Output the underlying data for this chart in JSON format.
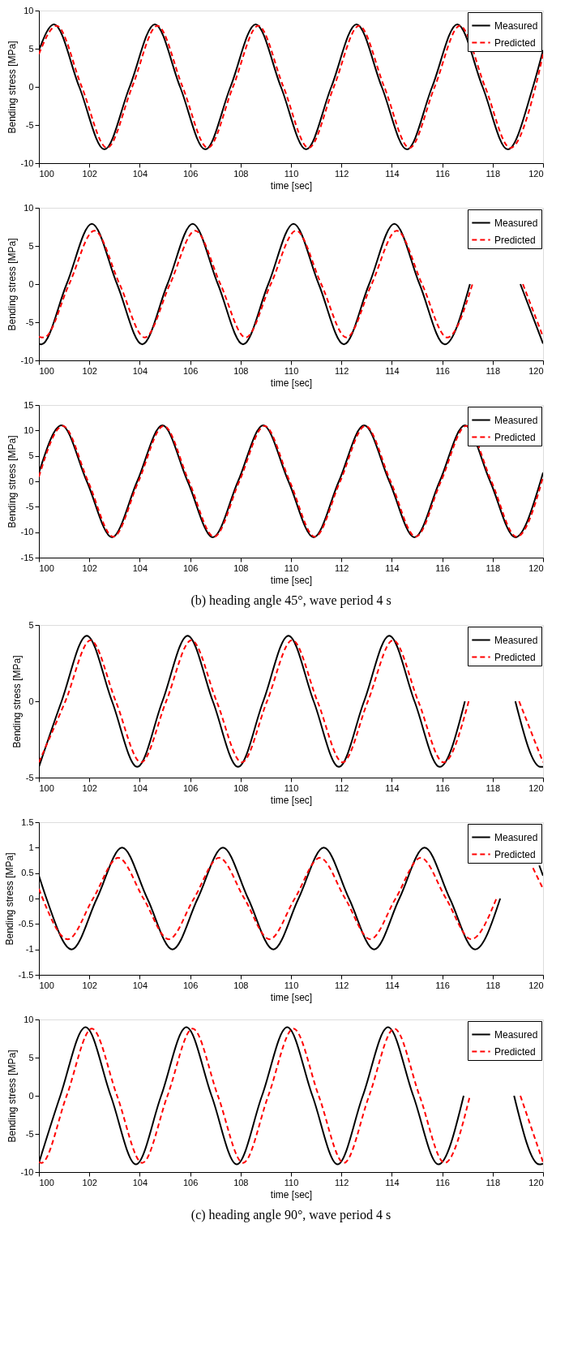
{
  "chart_data": [
    {
      "type": "line",
      "xlabel": "time [sec]",
      "ylabel": "Bending stress [MPa]",
      "xlim": [
        100,
        120
      ],
      "xticks": [
        100,
        102,
        104,
        106,
        108,
        110,
        112,
        114,
        116,
        118,
        120
      ],
      "ylim": [
        -10,
        10
      ],
      "yticks": [
        -10,
        -5,
        0,
        5,
        10
      ],
      "legend": "top right",
      "series": [
        {
          "name": "Measured",
          "color": "#000000",
          "line_style": "solid",
          "x": [
            100,
            100.6,
            101.6,
            102.6,
            103.6,
            104.6,
            105.6,
            106.6,
            107.6,
            108.6,
            109.6,
            110.6,
            111.6,
            112.6,
            113.6,
            114.6,
            115.6,
            116.6,
            117.6,
            118.6,
            119.6,
            120
          ],
          "values": [
            4.8,
            8.2,
            0,
            -8.2,
            0,
            8.2,
            0,
            -8.2,
            0,
            8.2,
            0,
            -8.2,
            0,
            8.2,
            0,
            -8.2,
            0,
            8.2,
            0,
            -8.2,
            0,
            4.8
          ]
        },
        {
          "name": "Predicted",
          "color": "#ff0000",
          "line_style": "dashed",
          "x": [
            100,
            100.7,
            101.7,
            102.7,
            103.7,
            104.7,
            105.7,
            106.7,
            107.7,
            108.7,
            109.7,
            110.7,
            111.7,
            112.7,
            113.7,
            114.7,
            115.7,
            116.7,
            117.7,
            118.7,
            119.7,
            120
          ],
          "values": [
            4.3,
            8.0,
            0,
            -8.0,
            0,
            8.0,
            0,
            -8.0,
            0,
            8.0,
            0,
            -8.0,
            0,
            8.0,
            0,
            -8.0,
            0,
            8.0,
            0,
            -8.0,
            0,
            4.3
          ]
        }
      ]
    },
    {
      "type": "line",
      "xlabel": "time [sec]",
      "ylabel": "Bending stress [MPa]",
      "xlim": [
        100,
        120
      ],
      "xticks": [
        100,
        102,
        104,
        106,
        108,
        110,
        112,
        114,
        116,
        118,
        120
      ],
      "ylim": [
        -10,
        10
      ],
      "yticks": [
        -10,
        -5,
        0,
        5,
        10
      ],
      "legend": "top right",
      "series": [
        {
          "name": "Measured",
          "color": "#000000",
          "line_style": "solid",
          "x": [
            100,
            100.1,
            101.1,
            102.1,
            103.1,
            104.1,
            105.1,
            106.1,
            107.1,
            108.1,
            109.1,
            110.1,
            111.1,
            112.1,
            113.1,
            114.1,
            115.1,
            116.1,
            117.1,
            118.1,
            119.1,
            120
          ],
          "values": [
            -7.8,
            -7.9,
            0,
            7.9,
            0,
            -7.9,
            0,
            7.9,
            0,
            -7.9,
            0,
            7.9,
            0,
            -7.9,
            0,
            7.9,
            0,
            -7.9,
            0,
            null,
            0,
            -7.8
          ]
        },
        {
          "name": "Predicted",
          "color": "#ff0000",
          "line_style": "dashed",
          "x": [
            100,
            100.2,
            101.2,
            102.2,
            103.2,
            104.2,
            105.2,
            106.2,
            107.2,
            108.2,
            109.2,
            110.2,
            111.2,
            112.2,
            113.2,
            114.2,
            115.2,
            116.2,
            117.2,
            118.2,
            119.2,
            120
          ],
          "values": [
            -6.9,
            -7.0,
            0,
            7.0,
            0,
            -7.0,
            0,
            7.0,
            0,
            -7.0,
            0,
            7.0,
            0,
            -7.0,
            0,
            7.0,
            0,
            -7.0,
            0,
            null,
            0,
            -6.9
          ]
        }
      ]
    },
    {
      "type": "line",
      "xlabel": "time [sec]",
      "ylabel": "Bending stress [MPa]",
      "xlim": [
        100,
        120
      ],
      "xticks": [
        100,
        102,
        104,
        106,
        108,
        110,
        112,
        114,
        116,
        118,
        120
      ],
      "ylim": [
        -15,
        15
      ],
      "yticks": [
        -15,
        -10,
        -5,
        0,
        5,
        10,
        15
      ],
      "legend": "top right",
      "annotations": [
        "(b) heading angle 45°, wave period 4 s"
      ],
      "series": [
        {
          "name": "Measured",
          "color": "#000000",
          "line_style": "solid",
          "x": [
            100,
            100.9,
            101.9,
            102.9,
            103.9,
            104.9,
            105.9,
            106.9,
            107.9,
            108.9,
            109.9,
            110.9,
            111.9,
            112.9,
            113.9,
            114.9,
            115.9,
            116.9,
            117.9,
            118.9,
            119.9,
            120
          ],
          "values": [
            1.7,
            11,
            0,
            -11,
            0,
            11,
            0,
            -11,
            0,
            11,
            0,
            -11,
            0,
            11,
            0,
            -11,
            0,
            11,
            0,
            -11,
            0,
            1.7
          ]
        },
        {
          "name": "Predicted",
          "color": "#ff0000",
          "line_style": "dashed",
          "x": [
            100,
            100.95,
            101.95,
            102.95,
            103.95,
            104.95,
            105.95,
            106.95,
            107.95,
            108.95,
            109.95,
            110.95,
            111.95,
            112.95,
            113.95,
            114.95,
            115.95,
            116.95,
            117.95,
            118.95,
            119.95,
            120
          ],
          "values": [
            0.9,
            10.9,
            0,
            -10.9,
            0,
            10.9,
            0,
            -10.9,
            0,
            10.9,
            0,
            -10.9,
            0,
            10.9,
            0,
            -10.9,
            0,
            10.9,
            0,
            -10.9,
            0,
            0.9
          ]
        }
      ]
    },
    {
      "type": "line",
      "xlabel": "time [sec]",
      "ylabel": "Bending stress [MPa]",
      "xlim": [
        100,
        120
      ],
      "xticks": [
        100,
        102,
        104,
        106,
        108,
        110,
        112,
        114,
        116,
        118,
        120
      ],
      "ylim": [
        -5,
        5
      ],
      "yticks": [
        -5,
        0,
        5
      ],
      "legend": "top right",
      "series": [
        {
          "name": "Measured",
          "color": "#000000",
          "line_style": "solid",
          "x": [
            100,
            100.9,
            101.9,
            102.9,
            103.9,
            104.9,
            105.9,
            106.9,
            107.9,
            108.9,
            109.9,
            110.9,
            111.9,
            112.9,
            113.9,
            114.9,
            115.9,
            116.9,
            117.9,
            118.9,
            119.9,
            120
          ],
          "values": [
            -4.3,
            0,
            4.3,
            0,
            -4.3,
            0,
            4.3,
            0,
            -4.3,
            0,
            4.3,
            0,
            -4.3,
            0,
            4.3,
            0,
            -4.3,
            0,
            null,
            0,
            -4.3,
            -4.3
          ]
        },
        {
          "name": "Predicted",
          "color": "#ff0000",
          "line_style": "dashed",
          "x": [
            100,
            101.05,
            102.05,
            103.05,
            104.05,
            105.05,
            106.05,
            107.05,
            108.05,
            109.05,
            110.05,
            111.05,
            112.05,
            113.05,
            114.05,
            115.05,
            116.05,
            117.05,
            118.05,
            119.05,
            120
          ],
          "values": [
            -4.0,
            0,
            4.0,
            0,
            -4.0,
            0,
            4.0,
            0,
            -4.0,
            0,
            4.0,
            0,
            -4.0,
            0,
            4.0,
            0,
            -4.0,
            0,
            null,
            0,
            -4.0
          ]
        }
      ]
    },
    {
      "type": "line",
      "xlabel": "time [sec]",
      "ylabel": "Bending stress [MPa]",
      "xlim": [
        100,
        120
      ],
      "xticks": [
        100,
        102,
        104,
        106,
        108,
        110,
        112,
        114,
        116,
        118,
        120
      ],
      "ylim": [
        -1.5,
        1.5
      ],
      "yticks": [
        -1.5,
        -1,
        -0.5,
        0,
        0.5,
        1,
        1.5
      ],
      "legend": "top right",
      "series": [
        {
          "name": "Measured",
          "color": "#000000",
          "line_style": "solid",
          "x": [
            100,
            100.3,
            101.3,
            102.3,
            103.3,
            104.3,
            105.3,
            106.3,
            107.3,
            108.3,
            109.3,
            110.3,
            111.3,
            112.3,
            113.3,
            114.3,
            115.3,
            116.3,
            117.3,
            118.3,
            119.3,
            119.85,
            120
          ],
          "values": [
            0.45,
            0,
            -1,
            0,
            1,
            0,
            -1,
            0,
            1,
            0,
            -1,
            0,
            1,
            0,
            -1,
            0,
            1,
            0,
            -1,
            0,
            null,
            0.65,
            0.45
          ]
        },
        {
          "name": "Predicted",
          "color": "#ff0000",
          "line_style": "dashed",
          "x": [
            100,
            100.15,
            101.15,
            102.15,
            103.15,
            104.15,
            105.15,
            106.15,
            107.15,
            108.15,
            109.15,
            110.15,
            111.15,
            112.15,
            113.15,
            114.15,
            115.15,
            116.15,
            117.15,
            118.15,
            119.15,
            119.6,
            120
          ],
          "values": [
            0.19,
            0,
            -0.8,
            0,
            0.8,
            0,
            -0.8,
            0,
            0.8,
            0,
            -0.8,
            0,
            0.8,
            0,
            -0.8,
            0,
            0.8,
            0,
            -0.8,
            0,
            null,
            0.6,
            0.19
          ]
        }
      ]
    },
    {
      "type": "line",
      "xlabel": "time [sec]",
      "ylabel": "Bending stress [MPa]",
      "xlim": [
        100,
        120
      ],
      "xticks": [
        100,
        102,
        104,
        106,
        108,
        110,
        112,
        114,
        116,
        118,
        120
      ],
      "ylim": [
        -10,
        10
      ],
      "yticks": [
        -10,
        -5,
        0,
        5,
        10
      ],
      "legend": "top right",
      "annotations": [
        "(c) heading angle 90°, wave period 4 s"
      ],
      "series": [
        {
          "name": "Measured",
          "color": "#000000",
          "line_style": "solid",
          "x": [
            100,
            100.85,
            101.85,
            102.85,
            103.85,
            104.85,
            105.85,
            106.85,
            107.85,
            108.85,
            109.85,
            110.85,
            111.85,
            112.85,
            113.85,
            114.85,
            115.85,
            116.85,
            117.85,
            118.85,
            119.85,
            120
          ],
          "values": [
            -8.8,
            0,
            9,
            0,
            -9,
            0,
            9,
            0,
            -9,
            0,
            9,
            0,
            -9,
            0,
            9,
            0,
            -9,
            0,
            null,
            0,
            -9,
            -8.9
          ]
        },
        {
          "name": "Predicted",
          "color": "#ff0000",
          "line_style": "dashed",
          "x": [
            100,
            100.1,
            101.1,
            102.1,
            103.1,
            104.1,
            105.1,
            106.1,
            107.1,
            108.1,
            109.1,
            110.1,
            111.1,
            112.1,
            113.1,
            114.1,
            115.1,
            116.1,
            117.1,
            118.1,
            119.1,
            120
          ],
          "values": [
            -8.7,
            -8.8,
            0,
            8.8,
            0,
            -8.8,
            0,
            8.8,
            0,
            -8.8,
            0,
            8.8,
            0,
            -8.8,
            0,
            8.8,
            0,
            -8.8,
            0,
            null,
            0,
            -8.7
          ]
        }
      ]
    }
  ]
}
